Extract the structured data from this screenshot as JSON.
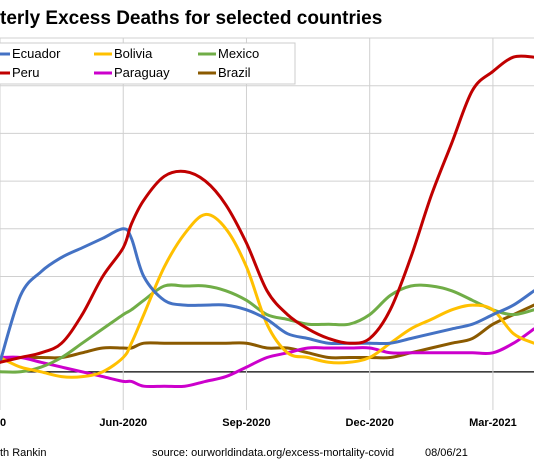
{
  "chart_data": {
    "type": "line",
    "title": "terly Excess Deaths for selected countries",
    "x_tick_labels": [
      "0",
      "Jun-2020",
      "Sep-2020",
      "Dec-2020",
      "Mar-2021"
    ],
    "x_tick_positions": [
      0.0,
      3.0,
      6.0,
      9.0,
      12.0
    ],
    "xlim": [
      0.0,
      13.0
    ],
    "ylim": [
      -8,
      70
    ],
    "grid": true,
    "legend_placement": "top-left",
    "x": [
      0.0,
      0.5,
      1.0,
      1.5,
      2.0,
      2.5,
      3.0,
      3.2,
      3.5,
      4.0,
      4.5,
      5.0,
      5.5,
      6.0,
      6.5,
      7.0,
      7.5,
      8.0,
      8.5,
      9.0,
      9.5,
      10.0,
      10.5,
      11.0,
      11.5,
      12.0,
      12.5,
      13.0
    ],
    "series": [
      {
        "name": "Ecuador",
        "color": "#4472c4",
        "values": [
          2,
          16,
          21,
          24,
          26,
          28,
          30,
          28,
          20,
          15,
          14,
          14,
          14,
          13,
          11,
          8,
          7,
          6,
          6,
          6,
          6,
          7,
          8,
          9,
          10,
          12,
          14,
          17
        ]
      },
      {
        "name": "Bolivia",
        "color": "#ffc000",
        "values": [
          3,
          1,
          0,
          -1,
          -1,
          0,
          3,
          6,
          12,
          22,
          29,
          33,
          30,
          22,
          10,
          4,
          3,
          2,
          2,
          3,
          6,
          9,
          11,
          13,
          14,
          13,
          8,
          6
        ]
      },
      {
        "name": "Mexico",
        "color": "#70ad47",
        "values": [
          0,
          0,
          1,
          3,
          6,
          9,
          12,
          13,
          15,
          18,
          18,
          18,
          17,
          15,
          12,
          11,
          10,
          10,
          10,
          12,
          16,
          18,
          18,
          17,
          15,
          13,
          12,
          13
        ]
      },
      {
        "name": "Peru",
        "color": "#c00000",
        "values": [
          2,
          3,
          4,
          6,
          12,
          20,
          26,
          31,
          36,
          41,
          42,
          40,
          35,
          27,
          17,
          12,
          9,
          7,
          6,
          7,
          13,
          24,
          37,
          48,
          59,
          63,
          66,
          66
        ]
      },
      {
        "name": "Paraguay",
        "color": "#cc00cc",
        "values": [
          3,
          3,
          2,
          1,
          0,
          -1,
          -2,
          -2,
          -3,
          -3,
          -3,
          -2,
          -1,
          1,
          3,
          4,
          5,
          5,
          5,
          5,
          4,
          4,
          4,
          4,
          4,
          4,
          6,
          9
        ]
      },
      {
        "name": "Brazil",
        "color": "#8b5a00",
        "values": [
          3,
          3,
          3,
          3,
          4,
          5,
          5,
          5,
          6,
          6,
          6,
          6,
          6,
          6,
          5,
          5,
          4,
          3,
          3,
          3,
          3,
          4,
          5,
          6,
          7,
          10,
          12,
          14
        ]
      }
    ]
  },
  "legend": {
    "items": [
      "Ecuador",
      "Bolivia",
      "Mexico",
      "Peru",
      "Paraguay",
      "Brazil"
    ]
  },
  "footer": {
    "author": "th Rankin",
    "source": "source:  ourworldindata.org/excess-mortality-covid",
    "date": "08/06/21"
  }
}
